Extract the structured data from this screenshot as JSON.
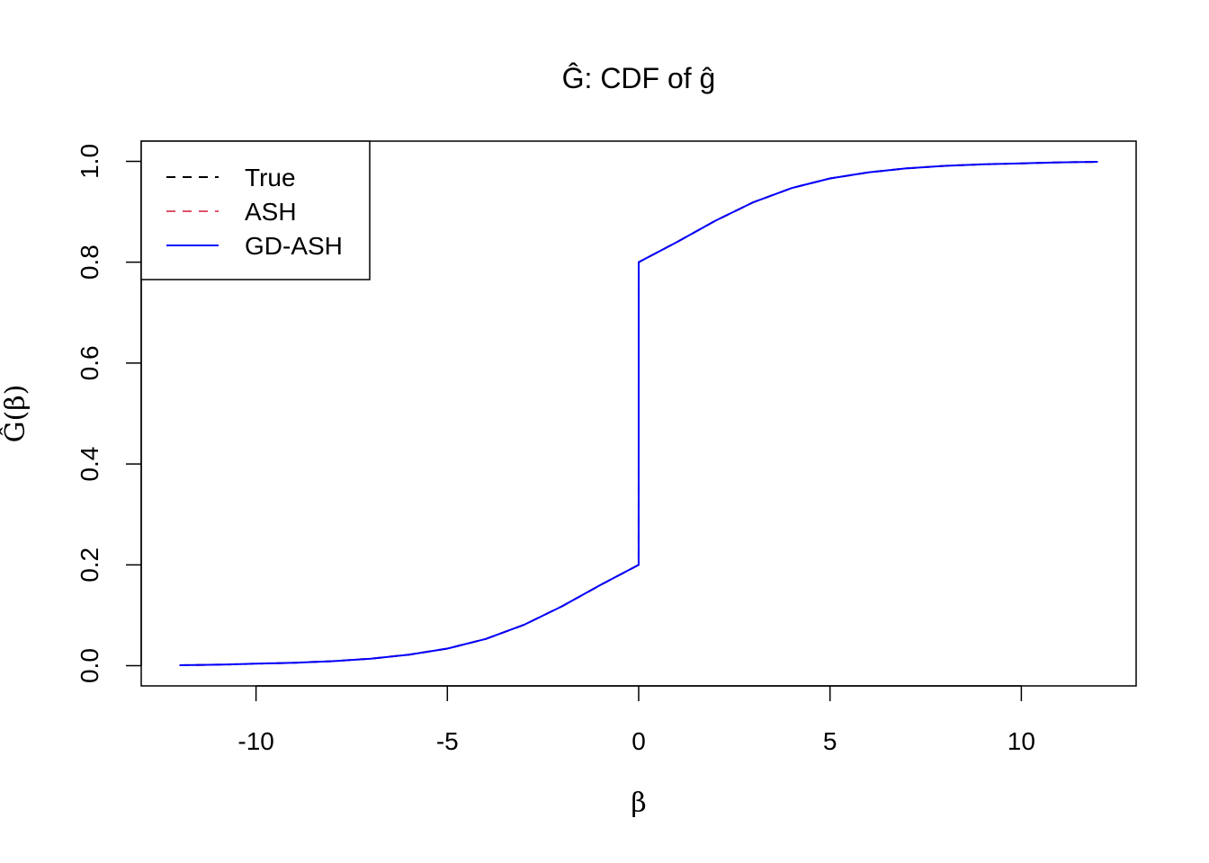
{
  "chart_data": {
    "type": "line",
    "title": "Ĝ: CDF of ĝ",
    "xlabel": "β",
    "ylabel": "Ĝ(β)",
    "xlim": [
      -13,
      13
    ],
    "ylim": [
      -0.04,
      1.04
    ],
    "x_ticks": [
      -10,
      -5,
      0,
      5,
      10
    ],
    "x_tick_labels": [
      "-10",
      "-5",
      "0",
      "5",
      "10"
    ],
    "y_ticks": [
      0.0,
      0.2,
      0.4,
      0.6,
      0.8,
      1.0
    ],
    "y_tick_labels": [
      "0.0",
      "0.2",
      "0.4",
      "0.6",
      "0.8",
      "1.0"
    ],
    "grid": false,
    "legend_position": "top-left",
    "x": [
      -12,
      -11,
      -10,
      -9,
      -8,
      -7,
      -6,
      -5,
      -4,
      -3,
      -2,
      -1,
      -0.001,
      0.001,
      1,
      2,
      3,
      4,
      5,
      6,
      7,
      8,
      9,
      10,
      11,
      12
    ],
    "series": [
      {
        "name": "True",
        "color": "#000000",
        "dash": "dashed",
        "values": [
          0.001,
          0.002,
          0.004,
          0.006,
          0.009,
          0.014,
          0.022,
          0.034,
          0.053,
          0.081,
          0.118,
          0.16,
          0.2,
          0.8,
          0.84,
          0.882,
          0.919,
          0.947,
          0.966,
          0.978,
          0.986,
          0.991,
          0.994,
          0.996,
          0.998,
          0.999
        ]
      },
      {
        "name": "ASH",
        "color": "#DF536B",
        "dash": "dashed",
        "values": [
          0.001,
          0.002,
          0.004,
          0.006,
          0.009,
          0.014,
          0.022,
          0.034,
          0.053,
          0.081,
          0.118,
          0.16,
          0.2,
          0.8,
          0.84,
          0.882,
          0.919,
          0.947,
          0.966,
          0.978,
          0.986,
          0.991,
          0.994,
          0.996,
          0.998,
          0.999
        ]
      },
      {
        "name": "GD-ASH",
        "color": "#0000FF",
        "dash": "solid",
        "values": [
          0.001,
          0.002,
          0.004,
          0.006,
          0.009,
          0.014,
          0.022,
          0.034,
          0.053,
          0.081,
          0.118,
          0.16,
          0.2,
          0.8,
          0.84,
          0.882,
          0.919,
          0.947,
          0.966,
          0.978,
          0.986,
          0.991,
          0.994,
          0.996,
          0.998,
          0.999
        ]
      }
    ]
  }
}
